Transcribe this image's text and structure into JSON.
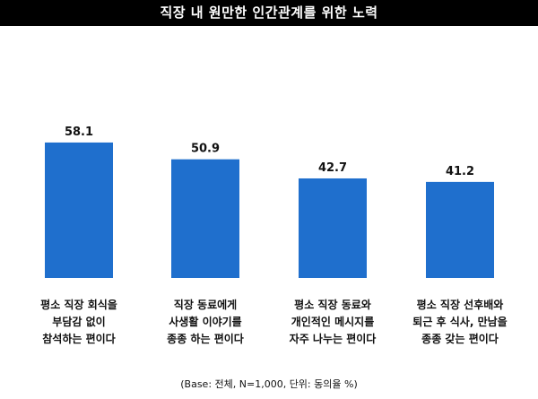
{
  "title": "직장 내 원만한 인간관계를 위한 노력",
  "footnote": "(Base: 전체, N=1,000, 단위: 동의율 %)",
  "colors": {
    "bar": "#1f6fcd",
    "title_bg": "#000000",
    "title_text": "#ffffff"
  },
  "chart_data": {
    "type": "bar",
    "title": "직장 내 원만한 인간관계를 위한 노력",
    "categories": [
      [
        "평소 직장 회식을",
        "부담감 없이",
        "참석하는 편이다"
      ],
      [
        "직장 동료에게",
        "사생활 이야기를",
        "종종 하는 편이다"
      ],
      [
        "평소 직장 동료와",
        "개인적인 메시지를",
        "자주 나누는 편이다"
      ],
      [
        "평소 직장 선후배와",
        "퇴근 후 식사, 만남을",
        "종종 갖는 편이다"
      ]
    ],
    "values": [
      58.1,
      50.9,
      42.7,
      41.2
    ],
    "value_labels": [
      "58.1",
      "50.9",
      "42.7",
      "41.2"
    ],
    "ylim": [
      0,
      70
    ],
    "grid": false,
    "legend": "none",
    "xlabel": "",
    "ylabel": ""
  }
}
